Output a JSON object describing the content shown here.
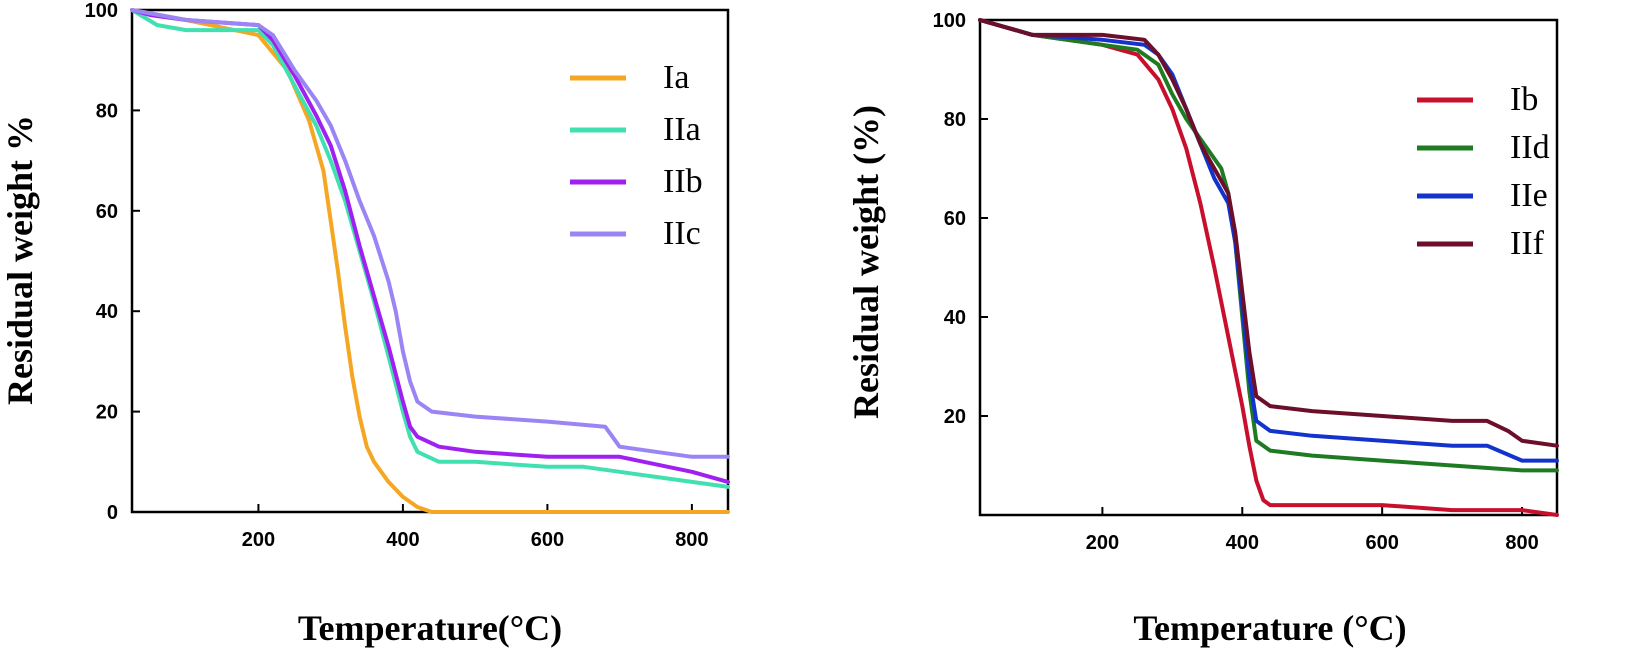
{
  "chart_data": [
    {
      "type": "line",
      "xlabel": "Temperature(°C)",
      "ylabel": "Residual weight %",
      "xlim": [
        25,
        850
      ],
      "ylim": [
        0,
        100
      ],
      "x_ticks": [
        200,
        400,
        600,
        800
      ],
      "y_ticks": [
        0,
        20,
        40,
        60,
        80,
        100
      ],
      "grid": false,
      "legend_position": "top-right",
      "series": [
        {
          "name": "Ia",
          "color": "#f5a623",
          "x": [
            25,
            100,
            200,
            240,
            270,
            290,
            300,
            310,
            320,
            330,
            340,
            350,
            360,
            380,
            400,
            420,
            440,
            500,
            600,
            700,
            800,
            850
          ],
          "y": [
            100,
            98,
            95,
            88,
            78,
            68,
            58,
            48,
            37,
            27,
            19,
            13,
            10,
            6,
            3,
            1,
            0,
            0,
            0,
            0,
            0,
            0
          ]
        },
        {
          "name": "IIa",
          "color": "#40e0b0",
          "x": [
            25,
            60,
            100,
            200,
            220,
            250,
            280,
            300,
            320,
            340,
            360,
            380,
            400,
            410,
            420,
            450,
            500,
            600,
            650,
            700,
            750,
            800,
            850
          ],
          "y": [
            100,
            97,
            96,
            96,
            93,
            85,
            77,
            70,
            62,
            52,
            42,
            31,
            20,
            15,
            12,
            10,
            10,
            9,
            9,
            8,
            7,
            6,
            5
          ]
        },
        {
          "name": "IIb",
          "color": "#a020f0",
          "x": [
            25,
            50,
            100,
            200,
            220,
            250,
            280,
            300,
            320,
            340,
            360,
            380,
            400,
            410,
            420,
            450,
            500,
            600,
            700,
            800,
            850
          ],
          "y": [
            100,
            99,
            98,
            97,
            94,
            87,
            79,
            73,
            64,
            53,
            43,
            33,
            22,
            17,
            15,
            13,
            12,
            11,
            11,
            8,
            6
          ]
        },
        {
          "name": "IIc",
          "color": "#9b85f5",
          "x": [
            25,
            100,
            200,
            220,
            250,
            280,
            300,
            320,
            340,
            360,
            380,
            390,
            400,
            410,
            420,
            440,
            500,
            600,
            680,
            700,
            750,
            800,
            850
          ],
          "y": [
            100,
            98,
            97,
            95,
            88,
            82,
            77,
            70,
            62,
            55,
            46,
            40,
            32,
            26,
            22,
            20,
            19,
            18,
            17,
            13,
            12,
            11,
            11
          ]
        }
      ]
    },
    {
      "type": "line",
      "xlabel": "Temperature (°C)",
      "ylabel": "Residual weight (%)",
      "xlim": [
        25,
        850
      ],
      "ylim": [
        0,
        100
      ],
      "x_ticks": [
        200,
        400,
        600,
        800
      ],
      "y_ticks": [
        20,
        40,
        60,
        80,
        100
      ],
      "grid": false,
      "legend_position": "top-right",
      "series": [
        {
          "name": "Ib",
          "color": "#c8102e",
          "x": [
            25,
            100,
            150,
            200,
            250,
            280,
            300,
            320,
            340,
            360,
            380,
            400,
            410,
            420,
            430,
            440,
            460,
            500,
            600,
            700,
            800,
            850
          ],
          "y": [
            100,
            97,
            96,
            95,
            93,
            88,
            82,
            74,
            63,
            50,
            36,
            22,
            14,
            7,
            3,
            2,
            2,
            2,
            2,
            1,
            1,
            0
          ]
        },
        {
          "name": "IId",
          "color": "#1e7b22",
          "x": [
            25,
            100,
            200,
            250,
            280,
            300,
            320,
            340,
            360,
            370,
            380,
            390,
            400,
            410,
            420,
            440,
            500,
            600,
            700,
            800,
            850
          ],
          "y": [
            100,
            97,
            95,
            94,
            91,
            85,
            80,
            76,
            72,
            70,
            65,
            55,
            40,
            25,
            15,
            13,
            12,
            11,
            10,
            9,
            9
          ]
        },
        {
          "name": "IIe",
          "color": "#1433cc",
          "x": [
            25,
            100,
            200,
            260,
            280,
            300,
            320,
            340,
            360,
            380,
            390,
            400,
            410,
            420,
            440,
            500,
            600,
            700,
            750,
            800,
            850
          ],
          "y": [
            100,
            97,
            96,
            95,
            93,
            89,
            82,
            75,
            68,
            63,
            55,
            42,
            28,
            19,
            17,
            16,
            15,
            14,
            14,
            11,
            11
          ]
        },
        {
          "name": "IIf",
          "color": "#6b0f2a",
          "x": [
            25,
            100,
            200,
            260,
            280,
            300,
            320,
            340,
            360,
            380,
            390,
            400,
            410,
            420,
            440,
            500,
            600,
            700,
            750,
            780,
            800,
            850
          ],
          "y": [
            100,
            97,
            97,
            96,
            93,
            88,
            82,
            75,
            70,
            65,
            57,
            45,
            33,
            24,
            22,
            21,
            20,
            19,
            19,
            17,
            15,
            14
          ]
        }
      ]
    }
  ]
}
